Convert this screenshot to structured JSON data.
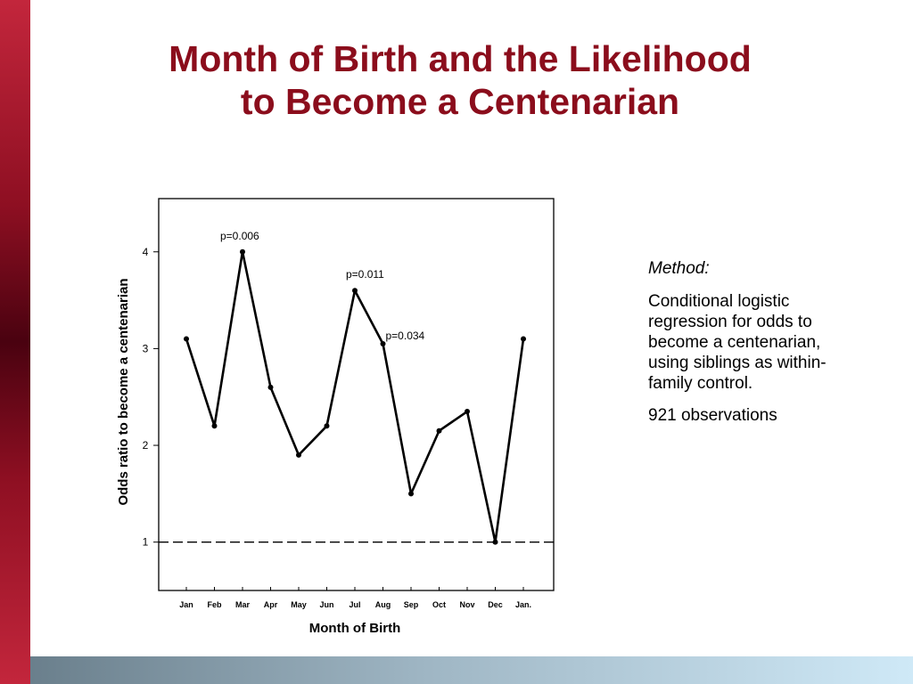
{
  "slide": {
    "title_line1": "Month of Birth and the Likelihood",
    "title_line2": "to Become a Centenarian",
    "colors": {
      "title": "#8b0d1c",
      "side_bar": "#8e0f22",
      "bottom_bar_start": "#6a7f8c",
      "bottom_bar_end": "#cfe9f7"
    }
  },
  "method": {
    "heading": "Method:",
    "description": "Conditional logistic regression for odds to become a centenarian, using siblings as within-family control.",
    "observations": "921 observations"
  },
  "chart_data": {
    "type": "line",
    "title": "",
    "xlabel": "Month of Birth",
    "ylabel": "Odds ratio to become a centenarian",
    "categories": [
      "Jan",
      "Feb",
      "Mar",
      "Apr",
      "May",
      "Jun",
      "Jul",
      "Aug",
      "Sep",
      "Oct",
      "Nov",
      "Dec",
      "Jan."
    ],
    "series": [
      {
        "values": [
          3.1,
          2.2,
          4.0,
          2.6,
          1.9,
          2.2,
          3.6,
          3.05,
          1.5,
          2.15,
          2.35,
          1.0,
          3.1
        ]
      }
    ],
    "ylim": [
      0.5,
      4.55
    ],
    "yticks": [
      1,
      2,
      3,
      4
    ],
    "reference_line": {
      "y": 1,
      "style": "dashed"
    },
    "annotations": [
      {
        "category": "Mar",
        "text": "p=0.006"
      },
      {
        "category": "Jul",
        "text": "p=0.011"
      },
      {
        "category": "Aug",
        "text": "p=0.034"
      }
    ],
    "grid": false,
    "legend": "none"
  }
}
